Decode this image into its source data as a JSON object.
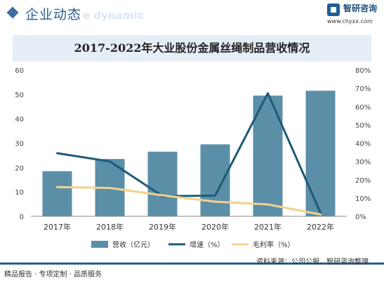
{
  "header": {
    "title": "企业动态",
    "subtitle": "e dynamic",
    "brand_name": "智研咨询",
    "brand_url": "www.chyxx.com"
  },
  "footer": {
    "left": "精品报告 · 专项定制 · 品质服务",
    "source": "资料来源：公司公报、智研咨询整理"
  },
  "colors": {
    "bar": "#5b8fa8",
    "growth": "#1d5a78",
    "margin": "#f3d28c",
    "axis": "#888888"
  },
  "chart_data": {
    "type": "bar",
    "title": "2017-2022年大业股份金属丝绳制品营收情况",
    "categories": [
      "2017年",
      "2018年",
      "2019年",
      "2020年",
      "2021年",
      "2022年"
    ],
    "y_left": {
      "range": [
        0,
        60
      ],
      "ticks": [
        "0",
        "10",
        "20",
        "30",
        "40",
        "50",
        "60"
      ]
    },
    "y_right": {
      "range": [
        0,
        80
      ],
      "ticks": [
        "0%",
        "10%",
        "20%",
        "30%",
        "40%",
        "50%",
        "60%",
        "70%",
        "80%"
      ]
    },
    "grid": false,
    "legend_position": "bottom",
    "series": [
      {
        "name": "营收（亿元）",
        "kind": "bar",
        "axis": "left",
        "values": [
          18.5,
          23.5,
          26.5,
          29.5,
          49.5,
          51.5
        ]
      },
      {
        "name": "增速（%）",
        "kind": "line",
        "axis": "right",
        "values": [
          34.5,
          30,
          11,
          11.3,
          67.3,
          2
        ]
      },
      {
        "name": "毛利率（%）",
        "kind": "line",
        "axis": "right",
        "values": [
          16,
          15.5,
          11.5,
          8,
          6.5,
          1
        ]
      }
    ]
  }
}
